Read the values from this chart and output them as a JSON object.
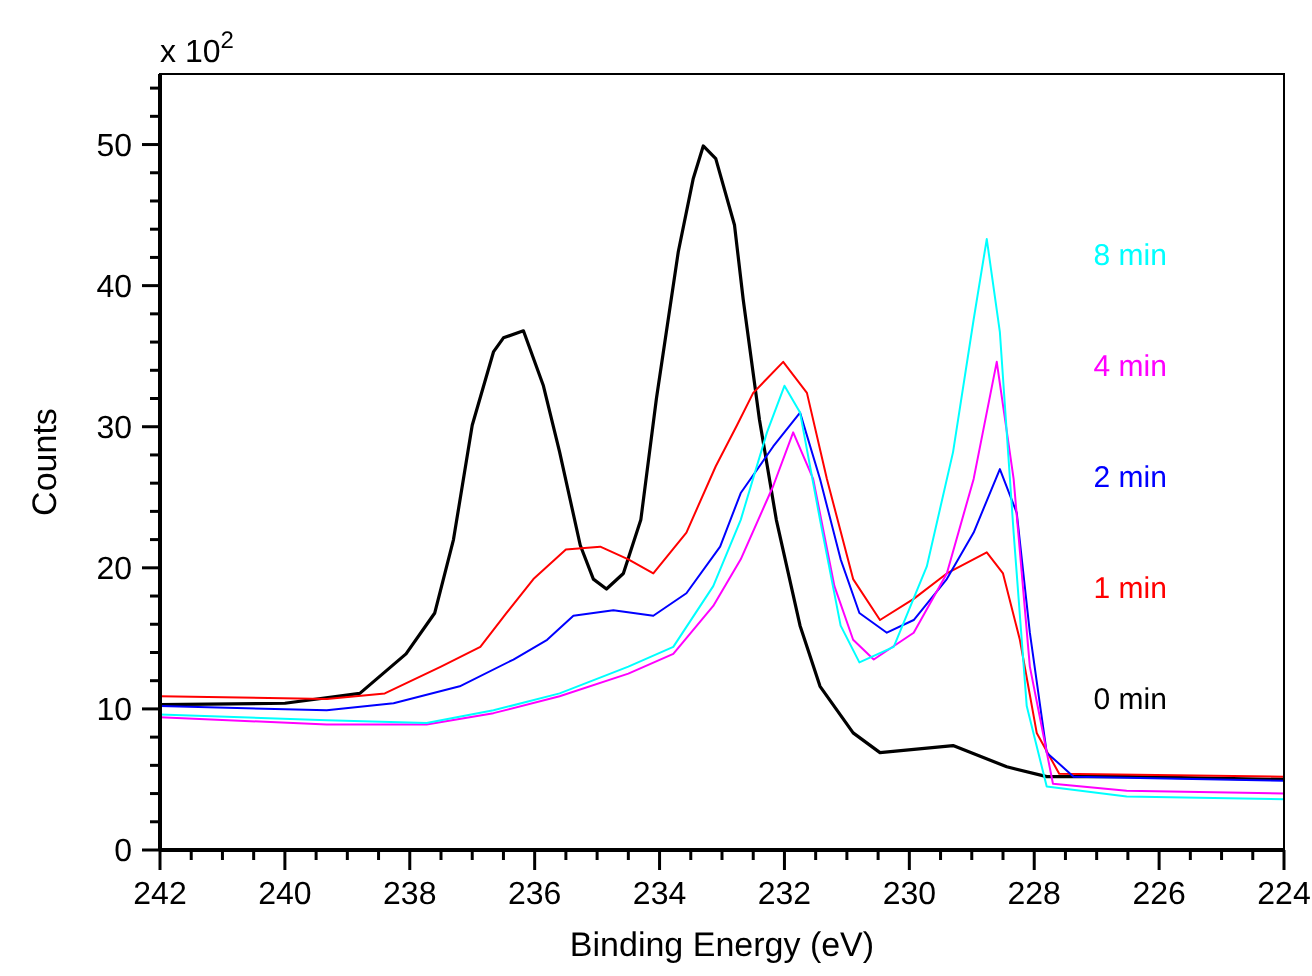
{
  "chart_data": {
    "type": "line",
    "xlabel": "Binding Energy (eV)",
    "ylabel": "Counts",
    "annotations": [
      "x 10$^{2}$"
    ],
    "xlim": [
      242,
      224
    ],
    "ylim": [
      0,
      55
    ],
    "marker": "none",
    "line_style": "solid",
    "xticks": [
      242,
      {
        "value": 241.5,
        "label": null
      },
      {
        "value": 241,
        "label": null
      },
      {
        "value": 240.5,
        "label": null
      },
      240,
      {
        "value": 239.5,
        "label": null
      },
      {
        "value": 239,
        "label": null
      },
      {
        "value": 238.5,
        "label": null
      },
      238,
      {
        "value": 237.5,
        "label": null
      },
      {
        "value": 237,
        "label": null
      },
      {
        "value": 236.5,
        "label": null
      },
      236,
      {
        "value": 235.5,
        "label": null
      },
      {
        "value": 235,
        "label": null
      },
      {
        "value": 234.5,
        "label": null
      },
      234,
      {
        "value": 233.5,
        "label": null
      },
      {
        "value": 233,
        "label": null
      },
      {
        "value": 232.5,
        "label": null
      },
      232,
      {
        "value": 231.5,
        "label": null
      },
      {
        "value": 231,
        "label": null
      },
      {
        "value": 230.5,
        "label": null
      },
      230,
      {
        "value": 229.5,
        "label": null
      },
      {
        "value": 229,
        "label": null
      },
      {
        "value": 228.5,
        "label": null
      },
      228,
      {
        "value": 227.5,
        "label": null
      },
      {
        "value": 227,
        "label": null
      },
      {
        "value": 226.5,
        "label": null
      },
      226,
      {
        "value": 225.5,
        "label": null
      },
      {
        "value": 225,
        "label": null
      },
      {
        "value": 224.5,
        "label": null
      },
      224
    ],
    "yticks": [
      0,
      {
        "value": 2,
        "label": null
      },
      {
        "value": 4,
        "label": null
      },
      {
        "value": 6,
        "label": null
      },
      {
        "value": 8,
        "label": null
      },
      10,
      {
        "value": 12,
        "label": null
      },
      {
        "value": 14,
        "label": null
      },
      {
        "value": 16,
        "label": null
      },
      {
        "value": 18,
        "label": null
      },
      20,
      {
        "value": 22,
        "label": null
      },
      {
        "value": 24,
        "label": null
      },
      {
        "value": 26,
        "label": null
      },
      {
        "value": 28,
        "label": null
      },
      30,
      {
        "value": 32,
        "label": null
      },
      {
        "value": 34,
        "label": null
      },
      {
        "value": 36,
        "label": null
      },
      {
        "value": 38,
        "label": null
      },
      40,
      {
        "value": 42,
        "label": null
      },
      {
        "value": 44,
        "label": null
      },
      {
        "value": 46,
        "label": null
      },
      {
        "value": 48,
        "label": null
      },
      50,
      {
        "value": 52,
        "label": null
      },
      {
        "value": 54,
        "label": null
      }
    ],
    "series": [
      {
        "name": "0 min",
        "color": "#000000",
        "x": [
          242,
          240,
          238.8,
          238.06,
          237.6,
          237.3,
          237.0,
          236.66,
          236.5,
          236.18,
          235.86,
          235.6,
          235.27,
          235.06,
          234.85,
          234.58,
          234.3,
          234.05,
          233.7,
          233.46,
          233.3,
          233.1,
          232.8,
          232.66,
          232.4,
          232.13,
          231.75,
          231.43,
          230.9,
          230.47,
          229.3,
          228.44,
          227.8,
          226.5,
          224
        ],
        "values": [
          10.3,
          10.4,
          11.1,
          13.9,
          16.8,
          22.0,
          30.1,
          35.3,
          36.3,
          36.8,
          32.9,
          28.2,
          21.6,
          19.2,
          18.5,
          19.6,
          23.4,
          32.0,
          42.4,
          47.6,
          49.9,
          49.0,
          44.3,
          39.0,
          30.5,
          23.4,
          15.9,
          11.6,
          8.3,
          6.9,
          7.4,
          5.9,
          5.2,
          5.2,
          5.0
        ]
      },
      {
        "name": "1 min",
        "color": "#ff0000",
        "x": [
          242,
          239.33,
          238.4,
          237.5,
          236.87,
          236.45,
          236.02,
          235.5,
          234.95,
          234.5,
          234.1,
          233.57,
          233.1,
          232.76,
          232.5,
          232.02,
          231.64,
          231.32,
          230.9,
          230.47,
          229.93,
          229.4,
          228.76,
          228.5,
          228.23,
          227.96,
          227.6,
          224
        ],
        "values": [
          10.9,
          10.7,
          11.1,
          13.0,
          14.4,
          16.8,
          19.2,
          21.3,
          21.5,
          20.6,
          19.6,
          22.5,
          27.2,
          30.1,
          32.4,
          34.6,
          32.4,
          26.3,
          19.2,
          16.3,
          17.8,
          19.6,
          21.1,
          19.6,
          14.9,
          8.3,
          5.4,
          5.2
        ]
      },
      {
        "name": "2 min",
        "color": "#0000ff",
        "x": [
          242,
          239.33,
          238.26,
          237.2,
          236.34,
          235.8,
          235.38,
          234.74,
          234.1,
          233.57,
          233.03,
          232.7,
          232.18,
          231.75,
          231.43,
          231.1,
          230.8,
          230.36,
          229.93,
          229.4,
          228.97,
          228.55,
          228.28,
          228.07,
          227.8,
          227.37,
          224
        ],
        "values": [
          10.2,
          9.9,
          10.4,
          11.6,
          13.5,
          14.9,
          16.6,
          17.0,
          16.6,
          18.2,
          21.5,
          25.3,
          28.6,
          31.0,
          26.3,
          20.6,
          16.8,
          15.4,
          16.3,
          19.2,
          22.5,
          27.0,
          23.9,
          15.4,
          6.9,
          5.2,
          4.9
        ]
      },
      {
        "name": "4 min",
        "color": "#ff00ff",
        "x": [
          242,
          239.33,
          237.73,
          236.66,
          235.6,
          234.5,
          233.78,
          233.14,
          232.7,
          232.18,
          231.86,
          231.54,
          231.2,
          230.9,
          230.57,
          229.93,
          229.4,
          228.97,
          228.6,
          228.33,
          228.07,
          227.7,
          226.52,
          224
        ],
        "values": [
          9.4,
          8.9,
          8.9,
          9.7,
          10.9,
          12.5,
          13.9,
          17.3,
          20.6,
          25.8,
          29.6,
          26.3,
          18.7,
          14.9,
          13.5,
          15.4,
          19.6,
          26.3,
          34.6,
          26.3,
          13.0,
          4.7,
          4.2,
          4.0
        ]
      },
      {
        "name": "8 min",
        "color": "#00ffff",
        "x": [
          242,
          239.33,
          237.73,
          236.66,
          235.6,
          234.5,
          233.78,
          233.14,
          232.7,
          232.28,
          232.0,
          231.75,
          231.43,
          231.1,
          230.8,
          230.25,
          229.72,
          229.3,
          228.97,
          228.76,
          228.55,
          228.33,
          228.12,
          227.8,
          226.52,
          224
        ],
        "values": [
          9.6,
          9.2,
          9.0,
          9.9,
          11.1,
          13.0,
          14.4,
          18.7,
          23.4,
          29.6,
          32.9,
          31.0,
          23.4,
          15.9,
          13.3,
          14.4,
          20.1,
          28.2,
          37.6,
          43.3,
          36.7,
          22.5,
          10.2,
          4.5,
          3.8,
          3.6
        ]
      }
    ]
  }
}
